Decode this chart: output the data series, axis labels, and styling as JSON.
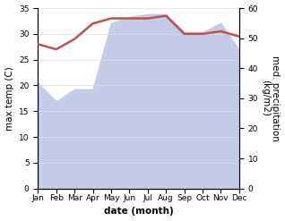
{
  "months": [
    "Jan",
    "Feb",
    "Mar",
    "Apr",
    "May",
    "Jun",
    "Jul",
    "Aug",
    "Sep",
    "Oct",
    "Nov",
    "Dec"
  ],
  "x": [
    0,
    1,
    2,
    3,
    4,
    5,
    6,
    7,
    8,
    9,
    10,
    11
  ],
  "temp": [
    28.0,
    27.0,
    29.0,
    32.0,
    33.0,
    33.0,
    33.0,
    33.5,
    30.0,
    30.0,
    30.5,
    29.5
  ],
  "precip": [
    35,
    29,
    33,
    33,
    55,
    57,
    58,
    58,
    52,
    52,
    55,
    46
  ],
  "temp_color": "#c0504d",
  "precip_fill_color": "#c5cce8",
  "bg_color": "#ffffff",
  "ylabel_left": "max temp (C)",
  "ylabel_right": "med. precipitation\n(kg/m2)",
  "xlabel": "date (month)",
  "ylim_left": [
    0,
    35
  ],
  "ylim_right": [
    0,
    60
  ],
  "label_fontsize": 7.5,
  "tick_fontsize": 6.5
}
